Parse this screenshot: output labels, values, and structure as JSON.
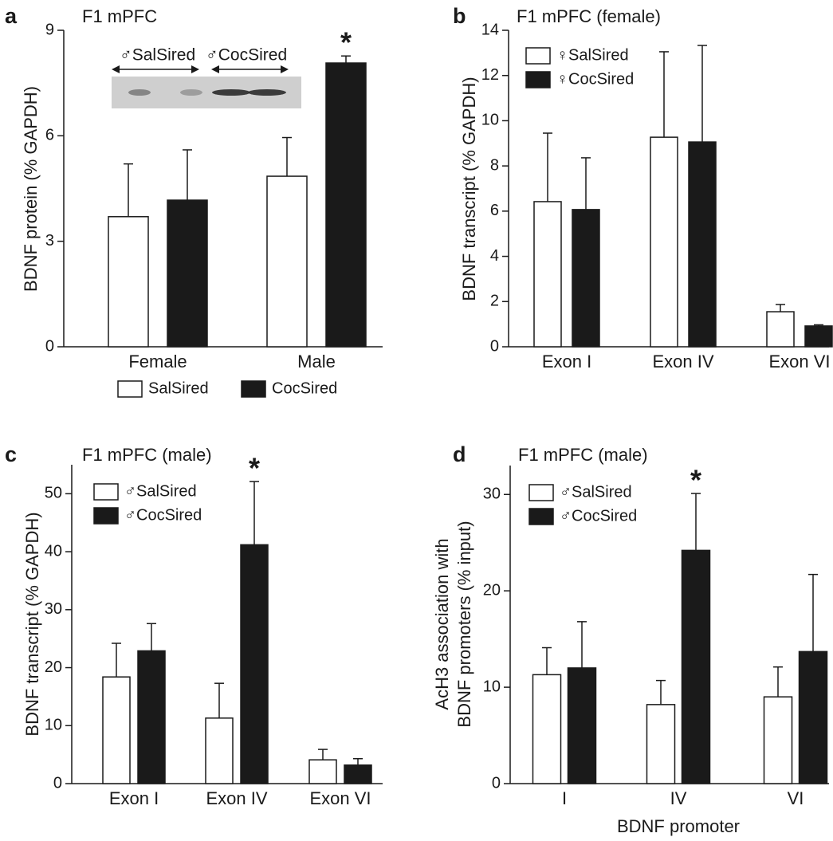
{
  "chart_data": [
    {
      "type": "bar",
      "panel": "a",
      "title": "F1 mPFC",
      "ylabel": "BDNF protein (% GAPDH)",
      "categories": [
        "Female",
        "Male"
      ],
      "series": [
        {
          "name": "SalSired",
          "color": "#ffffff",
          "values": [
            3.7,
            4.85
          ],
          "errors": [
            1.5,
            1.1
          ]
        },
        {
          "name": "CocSired",
          "color": "#1a1a1a",
          "values": [
            4.17,
            8.07
          ],
          "errors": [
            1.43,
            0.2
          ]
        }
      ],
      "ylim": [
        0,
        9
      ],
      "yticks": [
        0,
        3,
        6,
        9
      ],
      "legend": "below",
      "annotations": [
        {
          "text": "*"
        }
      ],
      "inset_labels": [
        "♂SalSired",
        "♂CocSired"
      ]
    },
    {
      "type": "bar",
      "panel": "b",
      "title": "F1 mPFC (female)",
      "ylabel": "BDNF transcript (% GAPDH)",
      "categories": [
        "Exon I",
        "Exon IV",
        "Exon VI"
      ],
      "series": [
        {
          "name": "♀SalSired",
          "color": "#ffffff",
          "values": [
            6.42,
            9.27,
            1.55
          ],
          "errors": [
            3.03,
            3.78,
            0.32
          ]
        },
        {
          "name": "♀CocSired",
          "color": "#1a1a1a",
          "values": [
            6.07,
            9.06,
            0.92
          ],
          "errors": [
            2.29,
            4.27,
            0.05
          ]
        }
      ],
      "ylim": [
        0,
        14
      ],
      "yticks": [
        0,
        2,
        4,
        6,
        8,
        10,
        12,
        14
      ],
      "legend": "upper left"
    },
    {
      "type": "bar",
      "panel": "c",
      "title": "F1 mPFC (male)",
      "ylabel": "BDNF transcript (% GAPDH)",
      "categories": [
        "Exon I",
        "Exon IV",
        "Exon VI"
      ],
      "series": [
        {
          "name": "♂SalSired",
          "color": "#ffffff",
          "values": [
            18.4,
            11.3,
            4.1
          ],
          "errors": [
            5.8,
            6.0,
            1.8
          ]
        },
        {
          "name": "♂CocSired",
          "color": "#1a1a1a",
          "values": [
            22.9,
            41.2,
            3.2
          ],
          "errors": [
            4.7,
            10.9,
            1.1
          ]
        }
      ],
      "ylim": [
        0,
        55
      ],
      "yticks": [
        0,
        10,
        20,
        30,
        40,
        50
      ],
      "legend": "upper left",
      "annotations": [
        {
          "text": "*"
        }
      ]
    },
    {
      "type": "bar",
      "panel": "d",
      "title": "F1 mPFC (male)",
      "ylabel": [
        "AcH3 association with",
        "BDNF promoters (% input)"
      ],
      "xlabel": "BDNF promoter",
      "categories": [
        "I",
        "IV",
        "VI"
      ],
      "series": [
        {
          "name": "♂SalSired",
          "color": "#ffffff",
          "values": [
            11.3,
            8.2,
            9.0
          ],
          "errors": [
            2.8,
            2.5,
            3.1
          ]
        },
        {
          "name": "♂CocSired",
          "color": "#1a1a1a",
          "values": [
            12.0,
            24.2,
            13.7
          ],
          "errors": [
            4.8,
            5.9,
            8.0
          ]
        }
      ],
      "ylim": [
        0,
        33
      ],
      "yticks": [
        0,
        10,
        20,
        30
      ],
      "legend": "upper left",
      "annotations": [
        {
          "text": "*"
        }
      ]
    }
  ]
}
